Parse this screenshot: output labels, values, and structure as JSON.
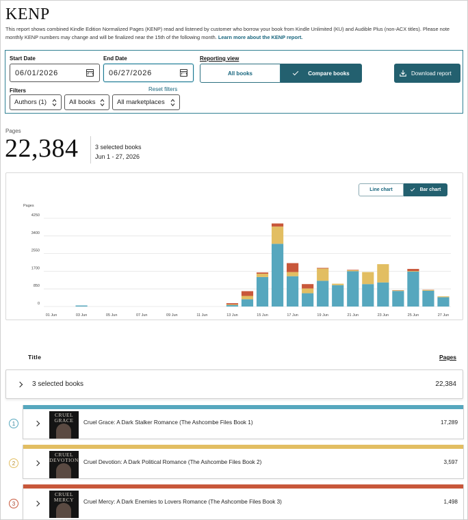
{
  "header": {
    "title": "KENP",
    "description": "This report shows combined Kindle Edition Normalized Pages (KENP) read and listened by customer who borrow your book from Kindle Unlimited (KU) and Audible Plus (non-ACX titles). Please note monthly KENP numbers may change and will be finalized near the 15th of the following month.",
    "learn_more": "Learn more about the KENP report."
  },
  "filters": {
    "start_date_label": "Start Date",
    "start_date": "06/01/2026",
    "end_date_label": "End Date",
    "end_date": "06/27/2026",
    "reporting_view_label": "Reporting view",
    "view_all_books": "All books",
    "view_compare_books": "Compare books",
    "download": "Download report",
    "filters_label": "Filters",
    "reset": "Reset filters",
    "authors": "Authors (1)",
    "books": "All books",
    "marketplaces": "All marketplaces"
  },
  "summary": {
    "pages_label": "Pages",
    "total": "22,384",
    "selected": "3 selected books",
    "range": "Jun 1 - 27, 2026"
  },
  "chart_toggle": {
    "line": "Line chart",
    "bar": "Bar chart"
  },
  "chart_data": {
    "type": "bar",
    "stacked": true,
    "ylabel": "Pages",
    "yticks": [
      "4250",
      "3400",
      "2550",
      "1700",
      "850",
      "0"
    ],
    "ylim": [
      0,
      4250
    ],
    "grid": true,
    "categories": [
      "01 Jun",
      "02 Jun",
      "03 Jun",
      "04 Jun",
      "05 Jun",
      "06 Jun",
      "07 Jun",
      "08 Jun",
      "09 Jun",
      "10 Jun",
      "11 Jun",
      "12 Jun",
      "13 Jun",
      "14 Jun",
      "15 Jun",
      "16 Jun",
      "17 Jun",
      "18 Jun",
      "19 Jun",
      "20 Jun",
      "21 Jun",
      "22 Jun",
      "23 Jun",
      "24 Jun",
      "25 Jun",
      "26 Jun",
      "27 Jun"
    ],
    "x_tick_labels": [
      "01 Jun",
      "03 Jun",
      "05 Jun",
      "07 Jun",
      "09 Jun",
      "11 Jun",
      "13 Jun",
      "15 Jun",
      "17 Jun",
      "19 Jun",
      "21 Jun",
      "23 Jun",
      "25 Jun",
      "27 Jun"
    ],
    "series": [
      {
        "color": "#56a7be",
        "values": [
          0,
          0,
          50,
          0,
          0,
          0,
          0,
          0,
          0,
          0,
          0,
          0,
          70,
          350,
          1420,
          3020,
          1460,
          640,
          1240,
          1030,
          1700,
          1080,
          1160,
          750,
          1680,
          760,
          450
        ]
      },
      {
        "color": "#e2be62",
        "values": [
          0,
          0,
          0,
          0,
          0,
          0,
          0,
          0,
          0,
          0,
          0,
          0,
          30,
          160,
          160,
          830,
          200,
          230,
          590,
          70,
          50,
          580,
          880,
          30,
          30,
          40,
          40
        ]
      },
      {
        "color": "#c8573a",
        "values": [
          0,
          0,
          0,
          0,
          0,
          0,
          0,
          0,
          0,
          0,
          0,
          0,
          60,
          230,
          60,
          150,
          430,
          210,
          30,
          0,
          20,
          0,
          0,
          10,
          100,
          10,
          0
        ]
      }
    ]
  },
  "list": {
    "title_header": "Title",
    "pages_header": "Pages",
    "summary_label": "3 selected books",
    "summary_value": "22,384",
    "books": [
      {
        "rank": "1",
        "title": "Cruel Grace: A Dark Stalker Romance (The Ashcombe Files Book 1)",
        "pages": "17,289",
        "color": "#56a7be",
        "cover_text": "CRUEL GRACE"
      },
      {
        "rank": "2",
        "title": "Cruel Devotion: A Dark Political Romance (The Ashcombe Files Book 2)",
        "pages": "3,597",
        "color": "#e2be62",
        "cover_text": "CRUEL DEVOTION"
      },
      {
        "rank": "3",
        "title": "Cruel Mercy: A Dark Enemies to Lovers Romance (The Ashcombe Files Book 3)",
        "pages": "1,498",
        "color": "#c8573a",
        "cover_text": "CRUEL MERCY"
      }
    ]
  }
}
